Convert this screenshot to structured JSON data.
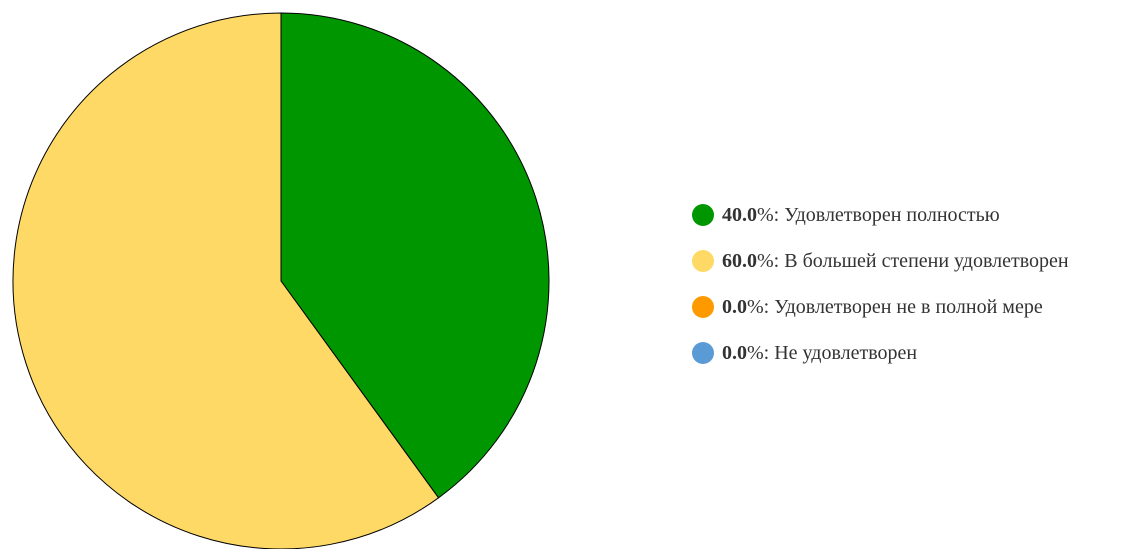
{
  "chart_data": {
    "type": "pie",
    "unit": "%",
    "slices": [
      {
        "label": "Удовлетворен полностью",
        "value": 40.0,
        "display": "40.0",
        "color": "#009600"
      },
      {
        "label": "В большей степени удовлетворен",
        "value": 60.0,
        "display": "60.0",
        "color": "#FFD966"
      },
      {
        "label": "Удовлетворен не в полной мере",
        "value": 0.0,
        "display": "0.0",
        "color": "#FF9900"
      },
      {
        "label": "Не удовлетворен",
        "value": 0.0,
        "display": "0.0",
        "color": "#5B9BD5"
      }
    ],
    "start_angle": "top",
    "direction": "clockwise",
    "legend": "right"
  }
}
